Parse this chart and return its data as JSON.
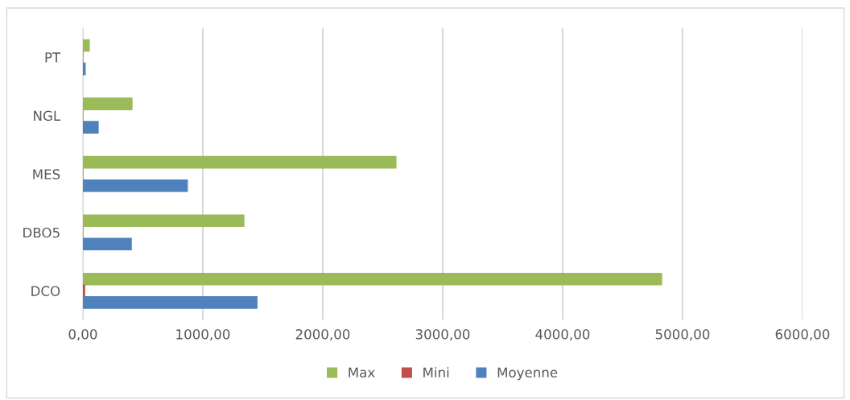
{
  "chart_data": {
    "type": "bar",
    "orientation": "horizontal",
    "categories": [
      "PT",
      "NGL",
      "MES",
      "DBO5",
      "DCO"
    ],
    "series": [
      {
        "name": "Max",
        "color": "#9bbb59",
        "values": [
          54,
          410,
          2611,
          1343,
          4826
        ]
      },
      {
        "name": "Mini",
        "color": "#c0504d",
        "values": [
          0,
          0,
          0,
          0,
          15
        ]
      },
      {
        "name": "Moyenne",
        "color": "#4f81bd",
        "values": [
          20,
          128,
          872,
          404,
          1452
        ]
      }
    ],
    "xlim": [
      0,
      6000
    ],
    "xticks": [
      {
        "value": 0,
        "label": "0,00"
      },
      {
        "value": 1000,
        "label": "1000,00"
      },
      {
        "value": 2000,
        "label": "2000,00"
      },
      {
        "value": 3000,
        "label": "3000,00"
      },
      {
        "value": 4000,
        "label": "4000,00"
      },
      {
        "value": 5000,
        "label": "5000,00"
      },
      {
        "value": 6000,
        "label": "6000,00"
      }
    ],
    "grid": "x",
    "legend": "bottom"
  }
}
